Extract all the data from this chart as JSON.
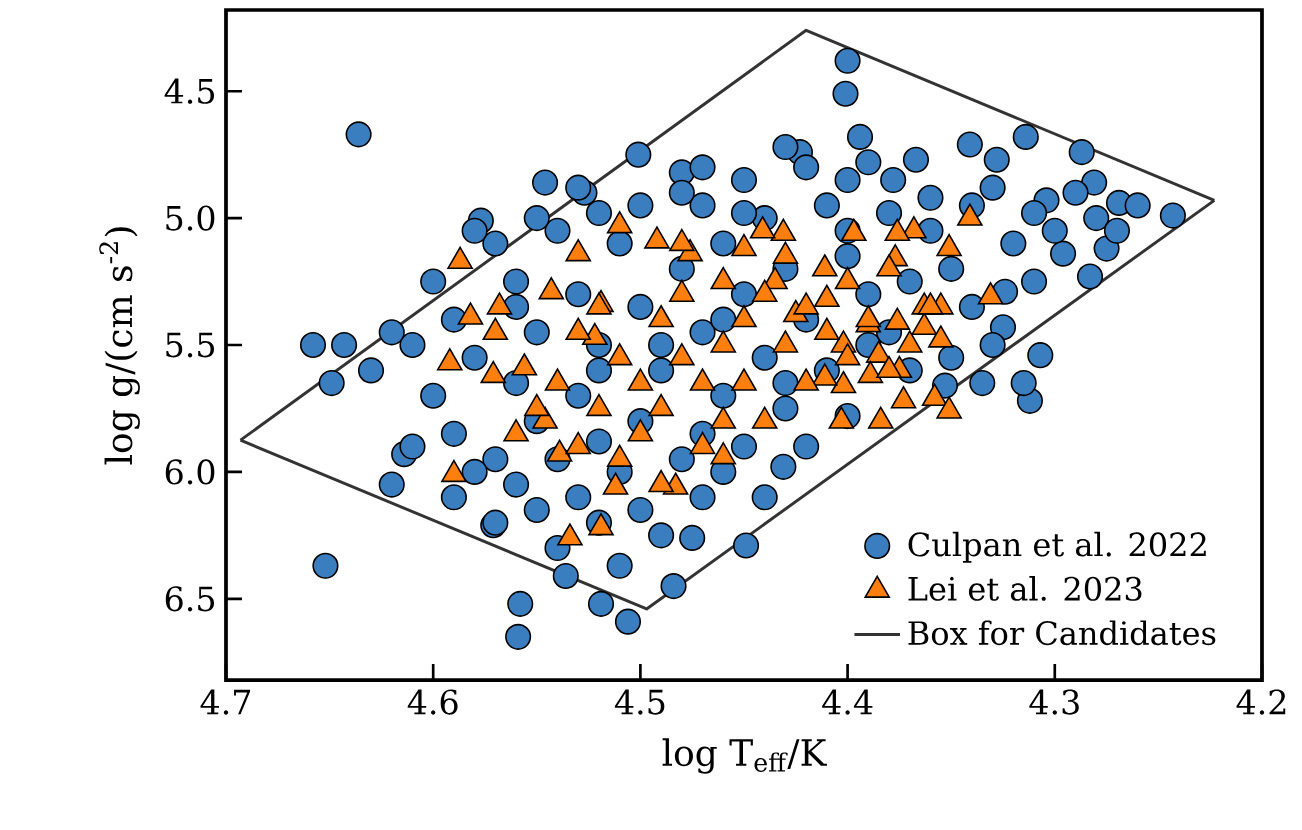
{
  "chart_data": {
    "type": "scatter",
    "xlabel": "log T$_{eff}$/K",
    "ylabel": "log g/(cm s$^{-2}$)",
    "xlim": [
      4.7,
      4.2
    ],
    "ylim": [
      6.82,
      4.18
    ],
    "xticks": [
      4.7,
      4.6,
      4.5,
      4.4,
      4.3,
      4.2
    ],
    "yticks": [
      4.5,
      {
        "value": 5,
        "label": "5.0"
      },
      5.5,
      {
        "value": 6,
        "label": "6.0"
      },
      6.5
    ],
    "legend": "bottom right",
    "grid": false,
    "series": [
      {
        "name": "Culpan et al. 2022",
        "marker": "circle",
        "color": "#3a7ebf",
        "x": [
          4.636,
          4.658,
          4.643,
          4.649,
          4.652,
          4.614,
          4.559,
          4.558,
          4.506,
          4.519,
          4.536,
          4.484,
          4.475,
          4.449,
          4.501,
          4.48,
          4.577,
          4.546,
          4.527,
          4.571,
          4.51,
          4.4,
          4.401,
          4.314,
          4.287,
          4.243,
          4.269,
          4.281,
          4.283,
          4.275,
          4.312,
          4.315,
          4.307,
          4.324,
          4.325,
          4.335,
          4.353,
          4.431,
          4.341,
          4.378,
          4.423,
          4.394,
          4.367,
          4.296,
          4.304,
          4.328,
          4.6,
          4.59,
          4.58,
          4.6,
          4.59,
          4.57,
          4.56,
          4.55,
          4.58,
          4.61,
          4.57,
          4.56,
          4.55,
          4.56,
          4.55,
          4.54,
          4.53,
          4.52,
          4.54,
          4.53,
          4.52,
          4.53,
          4.52,
          4.51,
          4.5,
          4.49,
          4.51,
          4.5,
          4.49,
          4.5,
          4.48,
          4.47,
          4.48,
          4.47,
          4.46,
          4.45,
          4.47,
          4.46,
          4.45,
          4.44,
          4.43,
          4.42,
          4.44,
          4.43,
          4.42,
          4.41,
          4.4,
          4.39,
          4.41,
          4.4,
          4.39,
          4.38,
          4.37,
          4.36,
          4.35,
          4.34,
          4.33,
          4.32,
          4.31,
          4.3,
          4.29,
          4.33,
          4.36,
          4.38,
          4.4,
          4.42,
          4.45,
          4.48,
          4.5,
          4.52,
          4.55,
          4.58,
          4.62,
          4.63,
          4.61,
          4.62,
          4.59,
          4.57,
          4.54,
          4.46,
          4.44,
          4.35,
          4.37,
          4.34,
          4.31,
          4.28,
          4.26,
          4.27,
          4.47,
          4.43,
          4.46,
          4.52,
          4.56,
          4.49,
          4.4,
          4.45,
          4.39,
          4.43,
          4.47,
          4.53
        ],
        "values": [
          4.67,
          5.5,
          5.5,
          5.65,
          6.37,
          5.93,
          6.65,
          6.52,
          6.59,
          6.52,
          6.41,
          6.45,
          6.26,
          6.29,
          4.75,
          4.82,
          5.01,
          4.86,
          4.9,
          6.21,
          6.37,
          4.38,
          4.51,
          4.68,
          4.74,
          4.99,
          4.94,
          4.86,
          5.23,
          5.12,
          5.72,
          5.65,
          5.54,
          5.29,
          5.43,
          5.65,
          5.66,
          5.98,
          4.71,
          4.85,
          4.74,
          4.68,
          4.77,
          5.14,
          4.93,
          4.77,
          5.25,
          5.4,
          5.55,
          5.7,
          5.85,
          5.95,
          6.05,
          6.15,
          6.0,
          5.5,
          5.1,
          5.25,
          5.45,
          5.65,
          5.8,
          5.95,
          6.1,
          6.2,
          5.05,
          5.3,
          5.5,
          5.7,
          5.88,
          6.0,
          6.15,
          6.25,
          5.1,
          5.35,
          5.6,
          5.8,
          5.95,
          6.1,
          5.2,
          5.45,
          5.7,
          5.9,
          4.95,
          5.1,
          5.3,
          5.55,
          5.75,
          5.9,
          5.0,
          5.2,
          5.4,
          5.6,
          5.78,
          5.5,
          4.95,
          5.15,
          5.3,
          5.45,
          5.25,
          5.05,
          5.2,
          5.35,
          5.5,
          5.1,
          4.98,
          5.05,
          4.9,
          4.88,
          4.92,
          4.98,
          4.85,
          4.8,
          4.85,
          4.9,
          4.95,
          4.98,
          5.0,
          5.05,
          5.45,
          5.6,
          5.9,
          6.05,
          6.1,
          6.2,
          6.3,
          6.0,
          6.1,
          5.55,
          5.6,
          4.95,
          5.25,
          5.0,
          4.95,
          5.05,
          5.85,
          5.65,
          5.4,
          5.6,
          5.35,
          5.5,
          5.05,
          4.98,
          4.78,
          4.72,
          4.8,
          4.88
        ]
      },
      {
        "name": "Lei et al. 2023",
        "marker": "triangle",
        "color": "#ff7f0e",
        "x": [
          4.587,
          4.582,
          4.592,
          4.59,
          4.568,
          4.51,
          4.492,
          4.476,
          4.53,
          4.543,
          4.534,
          4.519,
          4.483,
          4.46,
          4.546,
          4.571,
          4.556,
          4.512,
          4.539,
          4.522,
          4.519,
          4.341,
          4.368,
          4.376,
          4.351,
          4.377,
          4.331,
          4.355,
          4.363,
          4.363,
          4.355,
          4.376,
          4.39,
          4.402,
          4.385,
          4.375,
          4.389,
          4.402,
          4.411,
          4.373,
          4.384,
          4.403,
          4.358,
          4.351,
          4.411,
          4.397,
          4.431,
          4.441,
          4.425,
          4.435,
          4.41,
          4.54,
          4.53,
          4.52,
          4.51,
          4.5,
          4.5,
          4.49,
          4.49,
          4.48,
          4.48,
          4.47,
          4.47,
          4.46,
          4.46,
          4.45,
          4.45,
          4.44,
          4.44,
          4.43,
          4.43,
          4.42,
          4.42,
          4.41,
          4.4,
          4.4,
          4.39,
          4.38,
          4.38,
          4.37,
          4.36,
          4.51,
          4.49,
          4.46,
          4.53,
          4.55,
          4.57,
          4.56,
          4.52,
          4.48,
          4.45
        ],
        "values": [
          5.17,
          5.39,
          5.57,
          6.01,
          5.35,
          5.03,
          5.09,
          5.14,
          5.14,
          5.29,
          6.26,
          6.22,
          6.06,
          5.94,
          5.8,
          5.62,
          5.59,
          6.06,
          5.93,
          5.47,
          5.34,
          5.0,
          5.05,
          5.06,
          5.12,
          5.16,
          5.31,
          5.35,
          5.35,
          5.43,
          5.48,
          5.41,
          5.42,
          5.5,
          5.54,
          5.6,
          5.62,
          5.66,
          5.63,
          5.72,
          5.8,
          5.8,
          5.71,
          5.76,
          5.2,
          5.06,
          5.06,
          5.05,
          5.38,
          5.25,
          5.32,
          5.65,
          5.45,
          5.75,
          5.55,
          5.65,
          5.85,
          5.4,
          5.75,
          5.55,
          5.3,
          5.65,
          5.9,
          5.5,
          5.25,
          5.65,
          5.4,
          5.8,
          5.3,
          5.5,
          5.15,
          5.65,
          5.35,
          5.45,
          5.55,
          5.25,
          5.4,
          5.6,
          5.2,
          5.5,
          5.35,
          5.95,
          6.05,
          5.8,
          5.9,
          5.75,
          5.45,
          5.85,
          5.35,
          5.1,
          5.12
        ]
      },
      {
        "name": "Box for Candidates",
        "type": "line",
        "color": "#333333",
        "x": [
          4.693,
          4.42,
          4.223
        ],
        "values": [
          5.875,
          4.26,
          4.93
        ]
      },
      {
        "type": "line",
        "color": "#333333",
        "x": [
          4.693,
          4.497,
          4.223
        ],
        "values": [
          5.875,
          6.54,
          4.93
        ]
      }
    ]
  }
}
